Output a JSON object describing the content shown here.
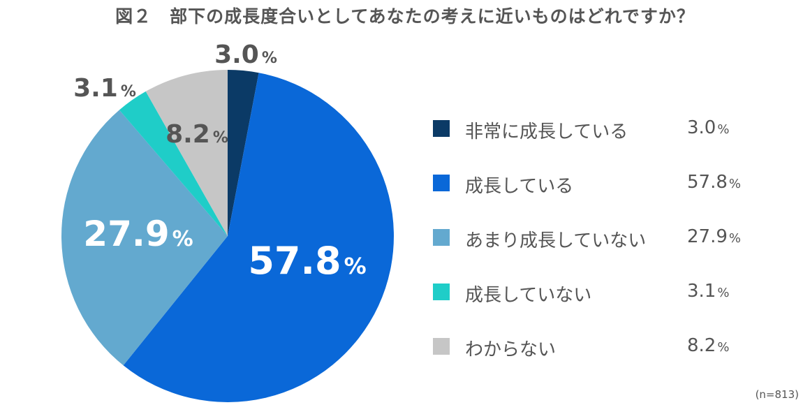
{
  "title": "図２　部下の成長度合いとしてあなたの考えに近いものはどれですか？",
  "note": "(n=813)",
  "chart_data": {
    "type": "pie",
    "unit": "%",
    "categories": [
      "非常に成長している",
      "成長している",
      "あまり成長していない",
      "成長していない",
      "わからない"
    ],
    "values": [
      3.0,
      57.8,
      27.9,
      3.1,
      8.2
    ],
    "data_labels": [
      "3.0",
      "57.8",
      "27.9",
      "3.1",
      "8.2"
    ],
    "value_labels": [
      "3.0",
      "57.8",
      "27.9",
      "3.1",
      "8.2"
    ],
    "colors": [
      "#0b3a66",
      "#0a68d8",
      "#63a9cf",
      "#1fcdc8",
      "#c6c6c6"
    ],
    "label_colors": [
      "#555555",
      "#ffffff",
      "#ffffff",
      "#555555",
      "#555555"
    ],
    "legend_position": "right"
  }
}
